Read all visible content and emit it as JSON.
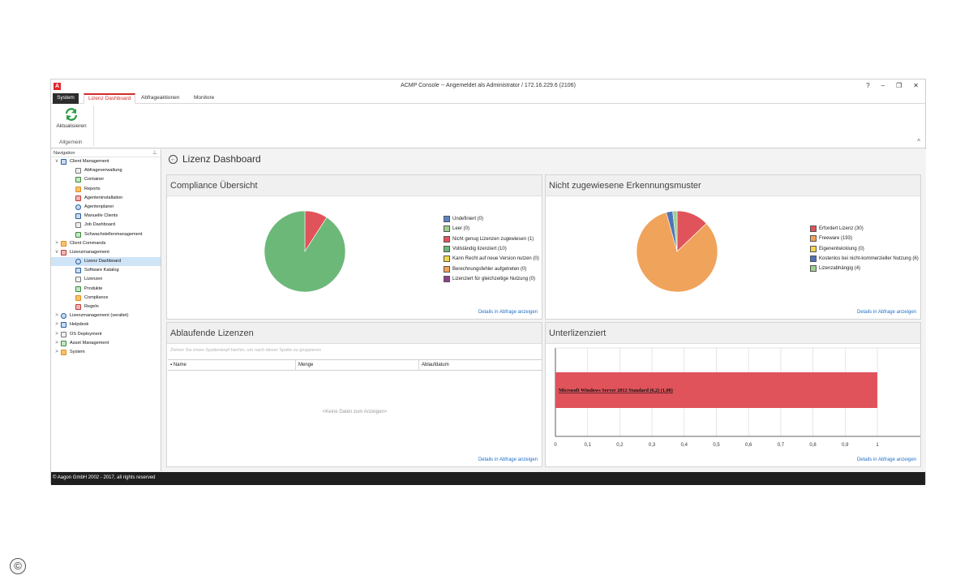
{
  "window": {
    "title": "ACMP Console -- Angemeldet als Administrator / 172.16.229.6 (2106)",
    "logo": "A",
    "controls": [
      "?",
      "–",
      "❐",
      "✕"
    ]
  },
  "ribbon": {
    "tabs": [
      "System",
      "Lizenz Dashboard",
      "Abfrageaktionen",
      "Monitore"
    ],
    "refresh_label": "Aktualisieren",
    "group_label": "Allgemein",
    "collapse": "^"
  },
  "nav": {
    "header": "Navigation",
    "pin": "⊥",
    "items": [
      {
        "label": "Client Management",
        "level": 0,
        "chev": "v",
        "icon": "monitor-icon"
      },
      {
        "label": "Abfrageverwaltung",
        "level": 1,
        "icon": "grid-icon"
      },
      {
        "label": "Container",
        "level": 1,
        "icon": "container-icon"
      },
      {
        "label": "Reports",
        "level": 1,
        "icon": "report-icon"
      },
      {
        "label": "Agenteninstallation",
        "level": 1,
        "icon": "install-icon"
      },
      {
        "label": "Agentenplaner",
        "level": 1,
        "icon": "clock-icon"
      },
      {
        "label": "Manuelle Clients",
        "level": 1,
        "icon": "globe-icon"
      },
      {
        "label": "Job Dashboard",
        "level": 1,
        "icon": "job-icon"
      },
      {
        "label": "Schwachstellenmanagement",
        "level": 1,
        "icon": "shield-icon"
      },
      {
        "label": "Client Commands",
        "level": 0,
        "chev": ">",
        "icon": "commands-icon"
      },
      {
        "label": "Lizenzmanagement",
        "level": 0,
        "chev": "v",
        "icon": "license-icon"
      },
      {
        "label": "Lizenz Dashboard",
        "level": 1,
        "icon": "dashboard-icon",
        "selected": true
      },
      {
        "label": "Software Katalog",
        "level": 1,
        "icon": "catalog-icon"
      },
      {
        "label": "Lizenzen",
        "level": 1,
        "icon": "licenses-icon"
      },
      {
        "label": "Produkte",
        "level": 1,
        "icon": "products-icon"
      },
      {
        "label": "Compliance",
        "level": 1,
        "icon": "compliance-icon"
      },
      {
        "label": "Regeln",
        "level": 1,
        "icon": "rules-icon"
      },
      {
        "label": "Lizenzmanagement (veraltet)",
        "level": 0,
        "chev": ">",
        "icon": "license-old-icon"
      },
      {
        "label": "Helpdesk",
        "level": 0,
        "chev": ">",
        "icon": "helpdesk-icon"
      },
      {
        "label": "OS Deployment",
        "level": 0,
        "chev": ">",
        "icon": "os-deployment-icon"
      },
      {
        "label": "Asset Management",
        "level": 0,
        "chev": ">",
        "icon": "asset-icon"
      },
      {
        "label": "System",
        "level": 0,
        "chev": ">",
        "icon": "system-icon"
      }
    ]
  },
  "page": {
    "title": "Lizenz Dashboard",
    "back": "←"
  },
  "compliance": {
    "title": "Compliance Übersicht",
    "details": "Details in Abfrage anzeigen",
    "legend": [
      {
        "label": "Undefiniert (0)",
        "color": "#5b84c4",
        "value": 0
      },
      {
        "label": "Leer (0)",
        "color": "#9fcf8f",
        "value": 0
      },
      {
        "label": "Nicht genug Lizenzen zugewiesen (1)",
        "color": "#e0535b",
        "value": 1
      },
      {
        "label": "Vollständig lizenziert (10)",
        "color": "#6cb878",
        "value": 10
      },
      {
        "label": "Kann Recht auf neue Version nutzen (0)",
        "color": "#f3d64e",
        "value": 0
      },
      {
        "label": "Berechnungsfehler aufgetreten (0)",
        "color": "#f0a35a",
        "value": 0
      },
      {
        "label": "Lizenziert für gleichzeitige Nutzung (0)",
        "color": "#8e3f8e",
        "value": 0
      }
    ]
  },
  "patterns": {
    "title": "Nicht zugewiesene Erkennungsmuster",
    "details": "Details in Abfrage anzeigen",
    "legend": [
      {
        "label": "Erfordert Lizenz (30)",
        "color": "#e0535b",
        "value": 30
      },
      {
        "label": "Freeware (193)",
        "color": "#f0a35a",
        "value": 193
      },
      {
        "label": "Eigenentwicklung (0)",
        "color": "#f3d64e",
        "value": 0
      },
      {
        "label": "Kostenlos bei nicht-kommerzieller Nutzung (6)",
        "color": "#4f73b8",
        "value": 6
      },
      {
        "label": "Lizenzabhängig (4)",
        "color": "#9fcf8f",
        "value": 4
      }
    ]
  },
  "expiring": {
    "title": "Ablaufende Lizenzen",
    "group_hint": "Ziehen Sie einen Spaltenkopf hierhin, um nach dieser Spalte zu gruppieren",
    "columns": [
      "Name",
      "Menge",
      "Ablaufdatum"
    ],
    "pin_glyph": "▪",
    "no_data": "<Keine Daten zum Anzeigen>",
    "details": "Details in Abfrage anzeigen"
  },
  "underlicensed": {
    "title": "Unterlizenziert",
    "details": "Details in Abfrage anzeigen"
  },
  "chart_data": {
    "type": "bar",
    "orientation": "horizontal",
    "categories": [
      "Microsoft Windows Server 2012 Standard (6,2) (1,00)"
    ],
    "values": [
      1.0
    ],
    "xlim": [
      0,
      1
    ],
    "ticks": [
      "0",
      "0,1",
      "0,2",
      "0,3",
      "0,4",
      "0,5",
      "0,6",
      "0,7",
      "0,8",
      "0,9",
      "1"
    ],
    "bar_color": "#e0535b",
    "grid": true
  },
  "footer": {
    "text": "© Aagon GmbH 2002 - 2017, all rights reserved"
  },
  "copyright_icon": "©"
}
